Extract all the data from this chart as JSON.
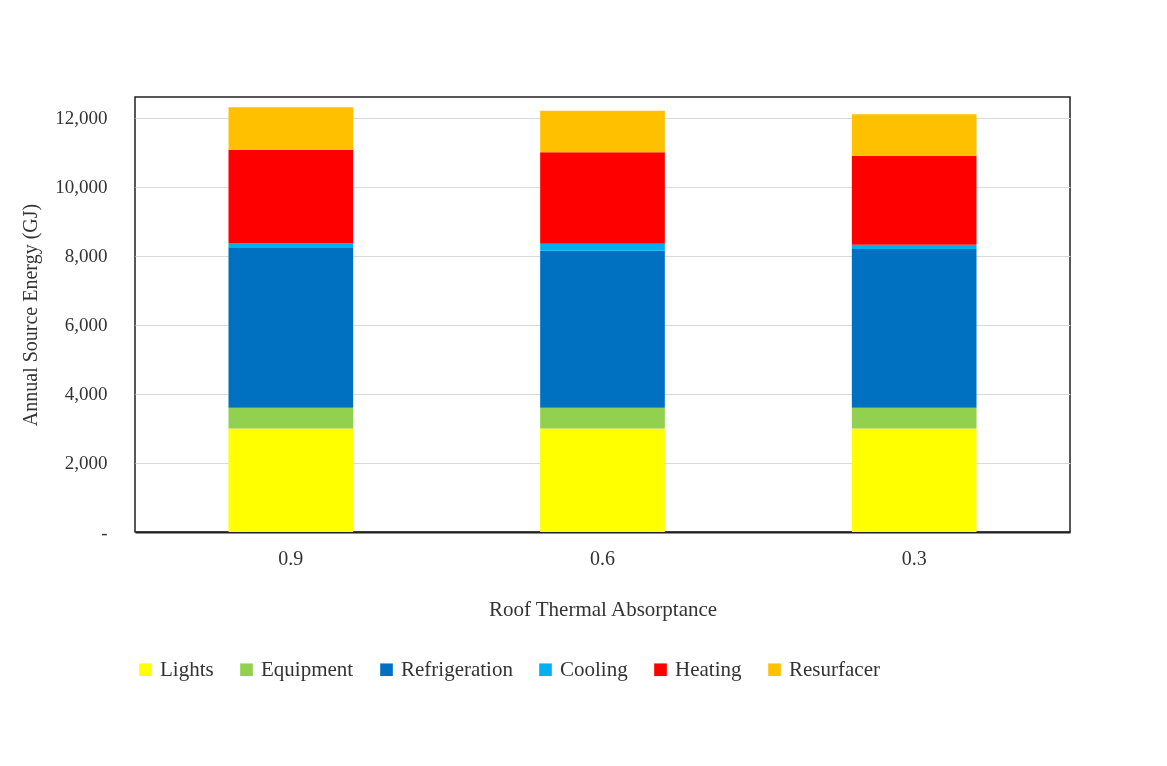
{
  "chart_data": {
    "type": "bar",
    "stacked": true,
    "xlabel": "Roof Thermal Absorptance",
    "ylabel": "Annual Source Energy (GJ)",
    "categories": [
      "0.9",
      "0.6",
      "0.3"
    ],
    "series": [
      {
        "name": "Lights",
        "color": "#ffff00",
        "values": [
          3000,
          3000,
          3000
        ]
      },
      {
        "name": "Equipment",
        "color": "#92d050",
        "values": [
          600,
          600,
          600
        ]
      },
      {
        "name": "Refrigeration",
        "color": "#0070c0",
        "values": [
          4650,
          4550,
          4600
        ]
      },
      {
        "name": "Cooling",
        "color": "#00b0f0",
        "values": [
          120,
          200,
          120
        ]
      },
      {
        "name": "Heating",
        "color": "#ff0000",
        "values": [
          2700,
          2650,
          2580
        ]
      },
      {
        "name": "Resurfacer",
        "color": "#ffc000",
        "values": [
          1230,
          1200,
          1200
        ]
      }
    ],
    "ylim": [
      0,
      12600
    ],
    "yticks": [
      {
        "value": 0,
        "label": "-"
      },
      {
        "value": 2000,
        "label": "2,000"
      },
      {
        "value": 4000,
        "label": "4,000"
      },
      {
        "value": 6000,
        "label": "6,000"
      },
      {
        "value": 8000,
        "label": "8,000"
      },
      {
        "value": 10000,
        "label": "10,000"
      },
      {
        "value": 12000,
        "label": "12,000"
      }
    ],
    "grid": "y",
    "legend": "bottom"
  }
}
